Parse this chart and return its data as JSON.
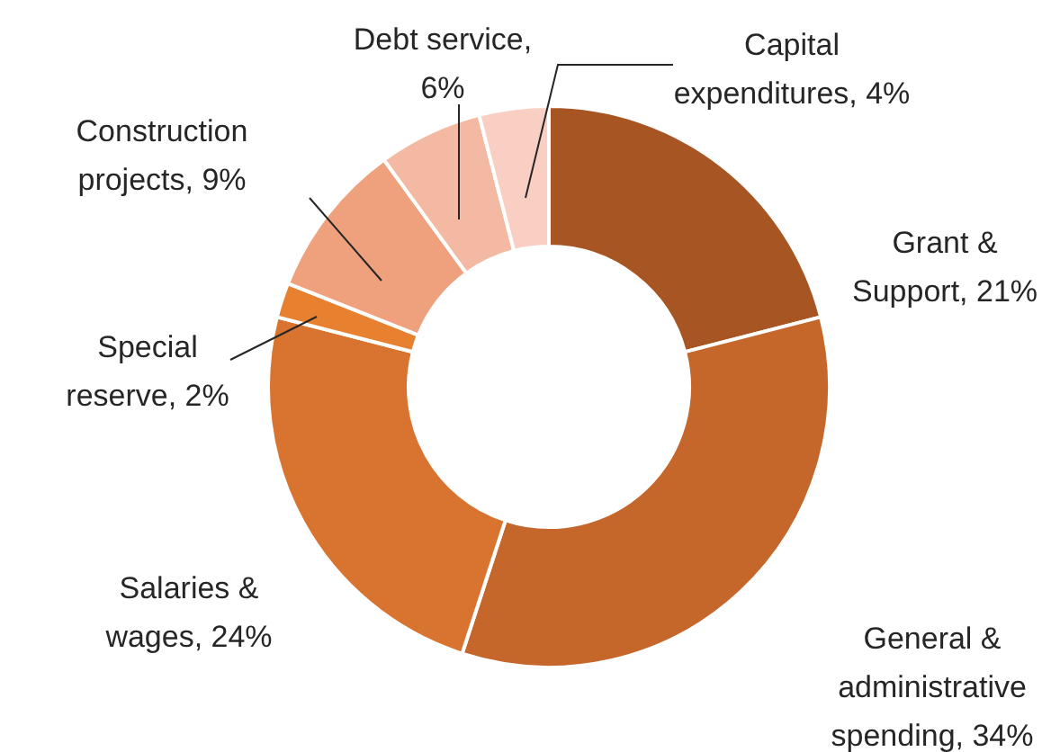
{
  "chart_data": {
    "type": "donut",
    "categories": [
      "Grant & Support, 21%",
      "General & administrative spending, 34%",
      "Salaries & wages, 24%",
      "Special reserve, 2%",
      "Construction projects, 9%",
      "Debt service, 6%",
      "Capital expenditures, 4%"
    ],
    "values": [
      21,
      34,
      24,
      2,
      9,
      6,
      4
    ],
    "colors": [
      "#a75623",
      "#c5662b",
      "#d87430",
      "#e8812f",
      "#efa07c",
      "#f3b9a2",
      "#f8cfc2"
    ],
    "legend": false
  }
}
